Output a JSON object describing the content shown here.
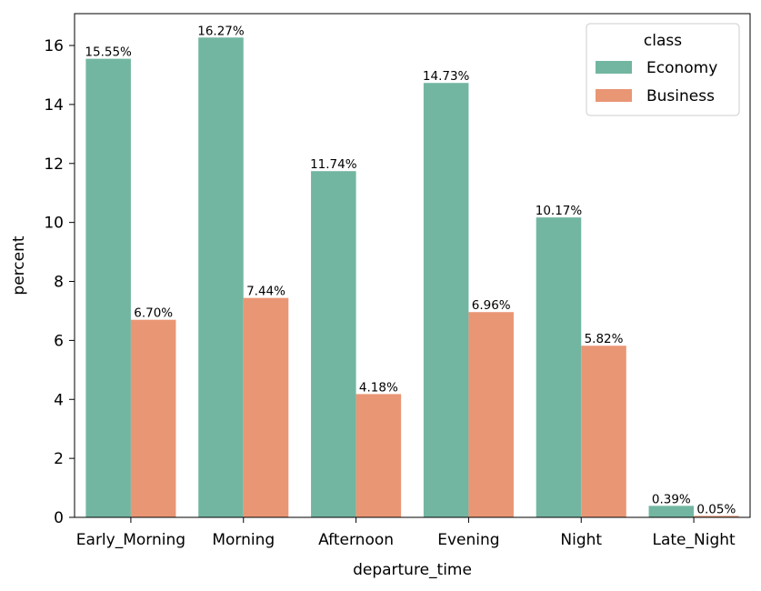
{
  "chart_data": {
    "type": "bar",
    "categories": [
      "Early_Morning",
      "Morning",
      "Afternoon",
      "Evening",
      "Night",
      "Late_Night"
    ],
    "series": [
      {
        "name": "Economy",
        "color": "#72b6a1",
        "values": [
          15.55,
          16.27,
          11.74,
          14.73,
          10.17,
          0.39
        ],
        "labels": [
          "15.55%",
          "16.27%",
          "11.74%",
          "14.73%",
          "10.17%",
          "0.39%"
        ]
      },
      {
        "name": "Business",
        "color": "#e99675",
        "values": [
          6.7,
          7.44,
          4.18,
          6.96,
          5.82,
          0.05
        ],
        "labels": [
          "6.70%",
          "7.44%",
          "4.18%",
          "6.96%",
          "5.82%",
          "0.05%"
        ]
      }
    ],
    "xlabel": "departure_time",
    "ylabel": "percent",
    "ylim": [
      0,
      17.08
    ],
    "yticks": [
      0,
      2,
      4,
      6,
      8,
      10,
      12,
      14,
      16
    ],
    "legend_title": "class",
    "legend_position": "top-right",
    "grid": false
  }
}
